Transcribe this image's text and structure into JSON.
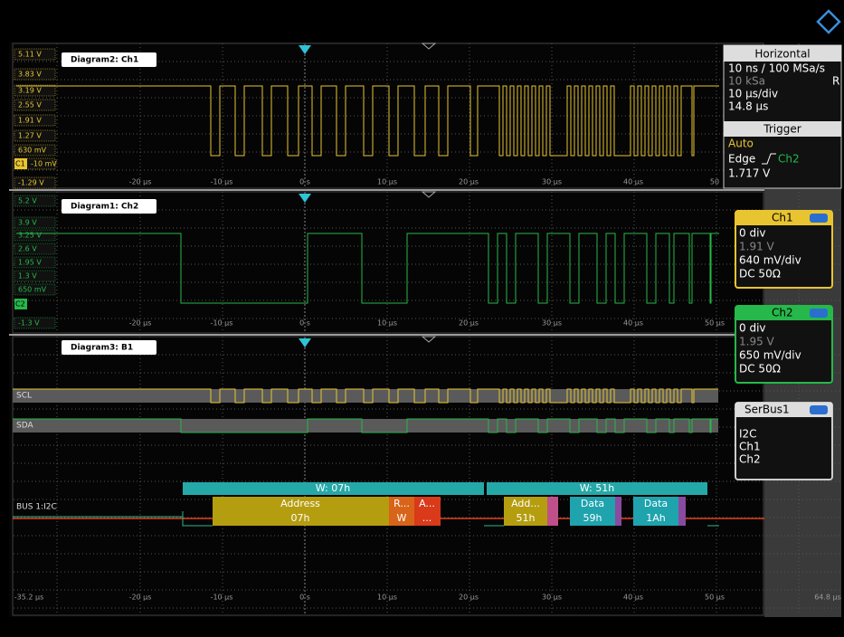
{
  "diagrams": [
    {
      "title": "Diagram2: Ch1",
      "y_labels": [
        "5.11 V",
        "3.83 V",
        "3.19 V",
        "2.55 V",
        "1.91 V",
        "1.27 V",
        "630 mV",
        "-10 mV",
        "-1.29 V"
      ],
      "badge": "C1",
      "x_labels": [
        "-20 µs",
        "-10 µs",
        "0 s",
        "10 µs",
        "20 µs",
        "30 µs",
        "40 µs",
        "50"
      ]
    },
    {
      "title": "Diagram1: Ch2",
      "y_labels": [
        "5.2 V",
        "3.9 V",
        "3.25 V",
        "2.6 V",
        "1.95 V",
        "1.3 V",
        "650 mV",
        "-1.3 V"
      ],
      "badge": "C2",
      "x_labels": [
        "-20 µs",
        "-10 µs",
        "0 s",
        "10 µs",
        "20 µs",
        "30 µs",
        "40 µs",
        "50 µs"
      ]
    },
    {
      "title": "Diagram3: B1",
      "rows": [
        "SCL",
        "SDA",
        "BUS 1:I2C"
      ],
      "x_labels": [
        "-35.2 µs",
        "-20 µs",
        "-10 µs",
        "0 s",
        "10 µs",
        "20 µs",
        "30 µs",
        "40 µs",
        "50 µs",
        "64.8 µs"
      ]
    }
  ],
  "decode": {
    "frame1": {
      "header": "W: 07h",
      "address_label": "Address",
      "address": "07h",
      "rw_label": "R...",
      "rw": "W",
      "ack_label": "A...",
      "ack": "..."
    },
    "frame2": {
      "header": "W: 51h",
      "address_label": "Add...",
      "address": "51h",
      "data1_label": "Data",
      "data1": "59h",
      "data2_label": "Data",
      "data2": "1Ah"
    }
  },
  "horizontal": {
    "title": "Horizontal",
    "lines": [
      "10 ns / 100 MSa/s",
      "10 kSa",
      "10 µs/div",
      "14.8 µs"
    ],
    "mode": "R"
  },
  "trigger": {
    "title": "Trigger",
    "mode": "Auto",
    "type": "Edge",
    "source": "Ch2",
    "level": "1.717 V"
  },
  "channels": [
    {
      "title": "Ch1",
      "lines": [
        "0 div",
        "1.91 V",
        "640 mV/div",
        "DC 50Ω"
      ]
    },
    {
      "title": "Ch2",
      "lines": [
        "0 div",
        "1.95 V",
        "650 mV/div",
        "DC 50Ω"
      ]
    }
  ],
  "serbus": {
    "title": "SerBus1",
    "lines": [
      "I2C",
      "Ch1",
      "Ch2"
    ]
  }
}
